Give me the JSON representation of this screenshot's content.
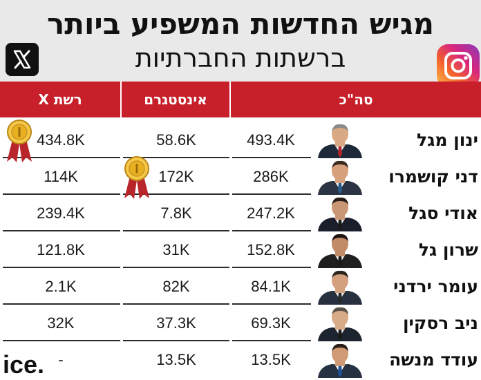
{
  "header": {
    "title": "מגיש החדשות המשפיע ביותר",
    "subtitle": "ברשתות החברתיות"
  },
  "chart_data": {
    "type": "table",
    "columns": [
      "סה\"כ",
      "אינסטגרם",
      "רשת X"
    ],
    "rows": [
      {
        "name": "ינון מגל",
        "total": "493.4K",
        "instagram": "58.6K",
        "x": "434.8K"
      },
      {
        "name": "דני קושמרו",
        "total": "286K",
        "instagram": "172K",
        "x": "114K"
      },
      {
        "name": "אודי סגל",
        "total": "247.2K",
        "instagram": "7.8K",
        "x": "239.4K"
      },
      {
        "name": "שרון גל",
        "total": "152.8K",
        "instagram": "31K",
        "x": "121.8K"
      },
      {
        "name": "עומר ירדני",
        "total": "84.1K",
        "instagram": "82K",
        "x": "2.1K"
      },
      {
        "name": "ניב רסקין",
        "total": "69.3K",
        "instagram": "37.3K",
        "x": "32K"
      },
      {
        "name": "עודד מנשה",
        "total": "13.5K",
        "instagram": "13.5K",
        "x": "-"
      }
    ],
    "medals": [
      {
        "column": "רשת X",
        "row": 0
      },
      {
        "column": "אינסטגרם",
        "row": 1
      }
    ]
  },
  "logos": {
    "x": "x-icon",
    "instagram": "instagram-icon",
    "publisher_text": "ice."
  },
  "colors": {
    "header_bg": "#e9e9e9",
    "column_header": "#c8202a",
    "medal_gold": "#e8b021",
    "ribbon": "#b8262c"
  }
}
